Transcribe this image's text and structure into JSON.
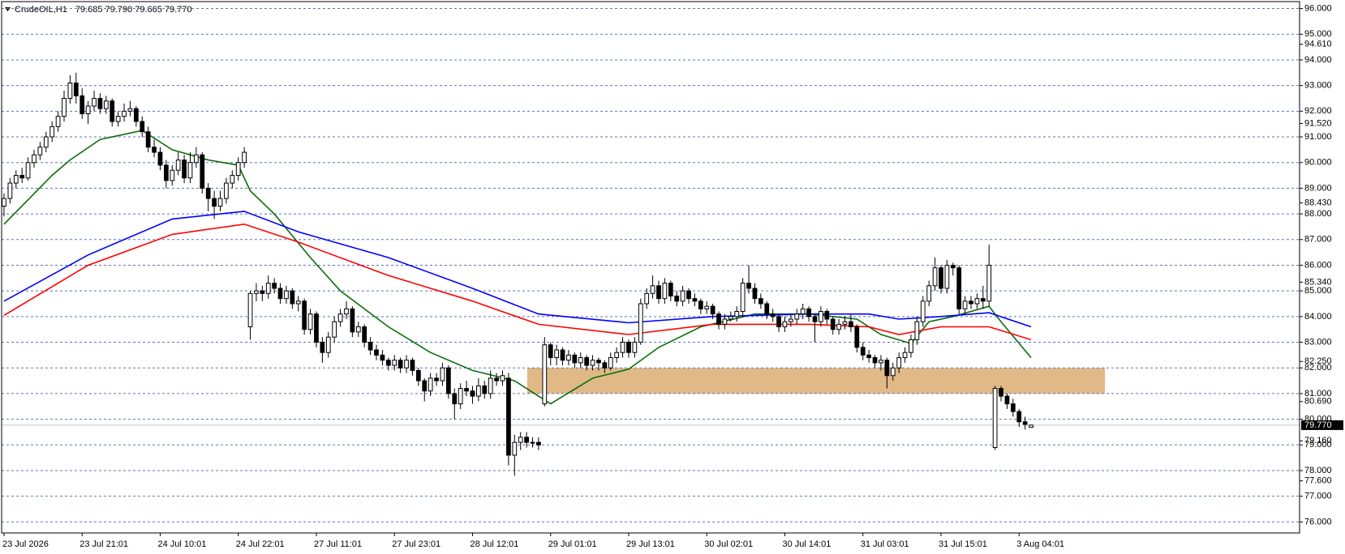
{
  "chart_data": {
    "type": "candlestick",
    "title": "CrudeOIL,H1",
    "subtitle": "79.685 79.790 79.665 79.770",
    "xlim": [
      -0.4,
      215.7
    ],
    "ylim": [
      75.57,
      96.27
    ],
    "xticks": [
      {
        "value": 0,
        "label": "23 Jul 2026"
      },
      {
        "value": 13,
        "label": "23 Jul 21:01"
      },
      {
        "value": 26,
        "label": "24 Jul 10:01"
      },
      {
        "value": 39,
        "label": "24 Jul 22:01"
      },
      {
        "value": 52,
        "label": "27 Jul 11:01"
      },
      {
        "value": 65,
        "label": "27 Jul 23:01"
      },
      {
        "value": 78,
        "label": "28 Jul 12:01"
      },
      {
        "value": 91,
        "label": "29 Jul 01:01"
      },
      {
        "value": 104,
        "label": "29 Jul 13:01"
      },
      {
        "value": 117,
        "label": "30 Jul 02:01"
      },
      {
        "value": 130,
        "label": "30 Jul 14:01"
      },
      {
        "value": 143,
        "label": "31 Jul 03:01"
      },
      {
        "value": 156,
        "label": "31 Jul 15:01"
      },
      {
        "value": 169,
        "label": "3 Aug 04:01"
      }
    ],
    "yticks": [
      {
        "value": 96,
        "label": "96.000"
      },
      {
        "value": 95,
        "label": "95.000"
      },
      {
        "value": 94,
        "label": "94.000"
      },
      {
        "value": 93,
        "label": "93.000"
      },
      {
        "value": 92,
        "label": "92.000"
      },
      {
        "value": 91,
        "label": "91.000"
      },
      {
        "value": 90,
        "label": "90.000"
      },
      {
        "value": 89,
        "label": "89.000"
      },
      {
        "value": 88,
        "label": "88.000"
      },
      {
        "value": 87,
        "label": "87.000"
      },
      {
        "value": 86,
        "label": "86.000"
      },
      {
        "value": 85,
        "label": "85.000"
      },
      {
        "value": 84,
        "label": "84.000"
      },
      {
        "value": 83,
        "label": "83.000"
      },
      {
        "value": 82,
        "label": "82.000"
      },
      {
        "value": 81,
        "label": "81.000"
      },
      {
        "value": 80,
        "label": "80.000"
      },
      {
        "value": 79,
        "label": "79.000"
      },
      {
        "value": 78,
        "label": "78.000"
      },
      {
        "value": 77,
        "label": "77.000"
      },
      {
        "value": 76,
        "label": "76.000"
      }
    ],
    "yticks_minor": [
      {
        "value": 94.61,
        "label": "94.610"
      },
      {
        "value": 91.52,
        "label": "91.520"
      },
      {
        "value": 88.43,
        "label": "88.430"
      },
      {
        "value": 85.34,
        "label": "85.340"
      },
      {
        "value": 82.25,
        "label": "82.250"
      },
      {
        "value": 80.69,
        "label": "80.690"
      },
      {
        "value": 79.16,
        "label": "79.160"
      },
      {
        "value": 77.6,
        "label": "77.600"
      }
    ],
    "grid": true,
    "grid_color": "#5b73c4",
    "up_color": "#ffffff",
    "down_color": "#000000",
    "last_price": {
      "value": 79.77,
      "label": "79.770"
    },
    "zone": {
      "x": [
        87.1,
        183.3
      ],
      "y": [
        81,
        82
      ],
      "color": "#e1b987"
    },
    "ohlc": [
      [
        88.3,
        88.8,
        87.9,
        88.6
      ],
      [
        88.6,
        89.4,
        88.4,
        89.2
      ],
      [
        89.2,
        89.7,
        89.0,
        89.5
      ],
      [
        89.5,
        89.8,
        89.2,
        89.4
      ],
      [
        89.4,
        90.2,
        89.3,
        90.0
      ],
      [
        90.0,
        90.5,
        89.8,
        90.3
      ],
      [
        90.3,
        90.8,
        90.1,
        90.6
      ],
      [
        90.6,
        91.2,
        90.4,
        91.0
      ],
      [
        91.0,
        91.6,
        90.8,
        91.4
      ],
      [
        91.4,
        92.0,
        91.2,
        91.8
      ],
      [
        91.8,
        92.8,
        91.6,
        92.5
      ],
      [
        92.5,
        93.4,
        92.3,
        93.1
      ],
      [
        93.1,
        93.5,
        92.3,
        92.6
      ],
      [
        92.6,
        92.9,
        91.7,
        91.9
      ],
      [
        91.9,
        92.4,
        91.5,
        92.2
      ],
      [
        92.2,
        92.8,
        92.0,
        92.5
      ],
      [
        92.5,
        92.7,
        91.9,
        92.1
      ],
      [
        92.1,
        92.6,
        91.9,
        92.4
      ],
      [
        92.4,
        92.5,
        91.4,
        91.6
      ],
      [
        91.6,
        92.0,
        91.4,
        91.8
      ],
      [
        91.8,
        92.3,
        91.6,
        92.0
      ],
      [
        92.0,
        92.4,
        91.8,
        92.1
      ],
      [
        92.1,
        92.2,
        91.4,
        91.6
      ],
      [
        91.6,
        91.8,
        91.0,
        91.2
      ],
      [
        91.2,
        91.4,
        90.4,
        90.6
      ],
      [
        90.6,
        90.9,
        90.2,
        90.4
      ],
      [
        90.4,
        90.6,
        89.7,
        89.9
      ],
      [
        89.9,
        90.1,
        89.0,
        89.3
      ],
      [
        89.3,
        89.9,
        89.1,
        89.7
      ],
      [
        89.7,
        90.4,
        89.5,
        90.1
      ],
      [
        90.1,
        90.3,
        89.2,
        89.4
      ],
      [
        89.4,
        90.4,
        89.2,
        90.0
      ],
      [
        90.0,
        90.6,
        89.8,
        90.3
      ],
      [
        90.3,
        90.4,
        88.8,
        89.0
      ],
      [
        89.0,
        89.2,
        88.1,
        88.6
      ],
      [
        88.6,
        88.9,
        87.8,
        88.3
      ],
      [
        88.3,
        88.9,
        88.1,
        88.6
      ],
      [
        88.6,
        89.4,
        88.4,
        89.2
      ],
      [
        89.2,
        89.7,
        89.0,
        89.5
      ],
      [
        89.5,
        90.2,
        89.3,
        90.0
      ],
      [
        90.0,
        90.6,
        89.8,
        90.4
      ],
      [
        83.6,
        85.0,
        83.1,
        84.9
      ],
      [
        84.9,
        85.3,
        84.6,
        85.0
      ],
      [
        85.0,
        85.2,
        84.6,
        84.9
      ],
      [
        84.9,
        85.6,
        84.7,
        85.3
      ],
      [
        85.3,
        85.5,
        84.9,
        85.1
      ],
      [
        85.1,
        85.3,
        84.5,
        84.7
      ],
      [
        84.7,
        85.2,
        84.5,
        85.0
      ],
      [
        85.0,
        85.1,
        84.3,
        84.5
      ],
      [
        84.5,
        84.8,
        84.2,
        84.6
      ],
      [
        84.6,
        84.7,
        83.3,
        83.5
      ],
      [
        83.5,
        84.3,
        83.3,
        84.1
      ],
      [
        84.1,
        84.2,
        82.8,
        83.0
      ],
      [
        83.0,
        83.2,
        82.2,
        82.6
      ],
      [
        82.6,
        83.4,
        82.4,
        83.2
      ],
      [
        83.2,
        84.0,
        83.0,
        83.8
      ],
      [
        83.8,
        84.3,
        83.6,
        84.1
      ],
      [
        84.1,
        84.6,
        83.9,
        84.3
      ],
      [
        84.3,
        84.4,
        83.2,
        83.4
      ],
      [
        83.4,
        83.8,
        83.2,
        83.6
      ],
      [
        83.6,
        83.7,
        82.8,
        83.0
      ],
      [
        83.0,
        83.2,
        82.5,
        82.7
      ],
      [
        82.7,
        82.9,
        82.3,
        82.5
      ],
      [
        82.5,
        82.7,
        82.1,
        82.3
      ],
      [
        82.3,
        82.4,
        81.9,
        82.1
      ],
      [
        82.1,
        82.5,
        81.9,
        82.3
      ],
      [
        82.3,
        82.4,
        81.8,
        82.0
      ],
      [
        82.0,
        82.5,
        81.8,
        82.3
      ],
      [
        82.3,
        82.4,
        81.7,
        81.9
      ],
      [
        81.9,
        82.0,
        81.3,
        81.5
      ],
      [
        81.5,
        81.6,
        80.7,
        81.1
      ],
      [
        81.1,
        81.8,
        80.9,
        81.6
      ],
      [
        81.6,
        81.8,
        81.3,
        81.5
      ],
      [
        81.5,
        82.2,
        81.3,
        82.0
      ],
      [
        82.0,
        82.1,
        80.8,
        81.0
      ],
      [
        81.0,
        81.2,
        80.0,
        80.6
      ],
      [
        80.6,
        81.4,
        80.4,
        81.2
      ],
      [
        81.2,
        81.5,
        80.9,
        81.1
      ],
      [
        81.1,
        81.3,
        80.6,
        80.9
      ],
      [
        80.9,
        81.6,
        80.7,
        81.3
      ],
      [
        81.3,
        81.5,
        80.8,
        81.0
      ],
      [
        81.0,
        81.9,
        80.8,
        81.6
      ],
      [
        81.6,
        81.8,
        81.3,
        81.5
      ],
      [
        81.5,
        81.9,
        81.3,
        81.7
      ],
      [
        81.6,
        81.8,
        78.2,
        78.6
      ],
      [
        78.6,
        79.4,
        77.8,
        79.1
      ],
      [
        79.1,
        79.5,
        78.8,
        79.3
      ],
      [
        79.3,
        79.5,
        78.9,
        79.1
      ],
      [
        79.1,
        79.3,
        78.9,
        79.1
      ],
      [
        79.1,
        79.3,
        78.8,
        79.0
      ],
      [
        80.6,
        83.2,
        80.5,
        82.9
      ],
      [
        82.9,
        83.0,
        82.1,
        82.4
      ],
      [
        82.4,
        82.9,
        82.1,
        82.7
      ],
      [
        82.7,
        82.8,
        82.1,
        82.3
      ],
      [
        82.3,
        82.7,
        82.1,
        82.5
      ],
      [
        82.5,
        82.6,
        82.0,
        82.2
      ],
      [
        82.2,
        82.6,
        82.0,
        82.4
      ],
      [
        82.4,
        82.5,
        81.9,
        82.1
      ],
      [
        82.1,
        82.5,
        81.9,
        82.3
      ],
      [
        82.3,
        82.4,
        81.9,
        82.2
      ],
      [
        82.2,
        82.3,
        81.8,
        82.0
      ],
      [
        82.0,
        82.6,
        81.9,
        82.4
      ],
      [
        82.4,
        82.8,
        82.2,
        82.6
      ],
      [
        82.6,
        83.2,
        82.4,
        83.0
      ],
      [
        83.0,
        83.1,
        82.4,
        82.6
      ],
      [
        82.6,
        83.2,
        82.4,
        83.0
      ],
      [
        83.0,
        84.7,
        82.9,
        84.5
      ],
      [
        84.5,
        85.1,
        84.3,
        84.9
      ],
      [
        84.9,
        85.6,
        84.7,
        85.2
      ],
      [
        85.2,
        85.4,
        84.5,
        84.7
      ],
      [
        84.7,
        85.5,
        84.5,
        85.3
      ],
      [
        85.3,
        85.4,
        84.6,
        84.8
      ],
      [
        84.8,
        85.0,
        84.4,
        84.6
      ],
      [
        84.6,
        85.2,
        84.4,
        85.0
      ],
      [
        85.0,
        85.1,
        84.5,
        84.7
      ],
      [
        84.7,
        84.9,
        84.4,
        84.6
      ],
      [
        84.6,
        84.7,
        84.1,
        84.3
      ],
      [
        84.3,
        84.6,
        84.1,
        84.4
      ],
      [
        84.4,
        84.5,
        83.9,
        84.1
      ],
      [
        84.1,
        84.2,
        83.5,
        83.7
      ],
      [
        83.7,
        84.1,
        83.5,
        83.9
      ],
      [
        83.9,
        84.2,
        83.8,
        84.0
      ],
      [
        84.0,
        84.4,
        83.8,
        84.2
      ],
      [
        84.2,
        85.5,
        84.0,
        85.3
      ],
      [
        85.3,
        86.0,
        84.9,
        85.1
      ],
      [
        85.1,
        85.3,
        84.5,
        84.7
      ],
      [
        84.7,
        84.9,
        84.3,
        84.5
      ],
      [
        84.5,
        84.6,
        83.9,
        84.1
      ],
      [
        84.1,
        84.3,
        83.8,
        84.0
      ],
      [
        84.0,
        84.1,
        83.4,
        83.6
      ],
      [
        83.6,
        84.0,
        83.4,
        83.8
      ],
      [
        83.8,
        84.1,
        83.6,
        83.9
      ],
      [
        83.9,
        84.3,
        83.7,
        84.1
      ],
      [
        84.1,
        84.5,
        83.9,
        84.3
      ],
      [
        84.3,
        84.4,
        83.8,
        84.0
      ],
      [
        84.0,
        84.1,
        83.0,
        83.8
      ],
      [
        83.8,
        84.4,
        83.6,
        84.2
      ],
      [
        84.2,
        84.3,
        83.7,
        83.9
      ],
      [
        83.9,
        84.0,
        83.3,
        83.5
      ],
      [
        83.5,
        83.9,
        83.3,
        83.7
      ],
      [
        83.7,
        84.0,
        83.5,
        83.8
      ],
      [
        83.8,
        84.1,
        83.4,
        83.6
      ],
      [
        83.6,
        83.7,
        82.6,
        82.8
      ],
      [
        82.8,
        83.0,
        82.3,
        82.5
      ],
      [
        82.5,
        82.7,
        82.2,
        82.4
      ],
      [
        82.4,
        82.5,
        82.0,
        82.2
      ],
      [
        82.2,
        82.5,
        81.9,
        82.3
      ],
      [
        82.3,
        82.4,
        81.2,
        81.7
      ],
      [
        81.7,
        82.2,
        81.5,
        82.0
      ],
      [
        82.0,
        82.6,
        81.8,
        82.4
      ],
      [
        82.4,
        82.8,
        82.2,
        82.6
      ],
      [
        82.6,
        83.3,
        82.4,
        83.1
      ],
      [
        83.1,
        84.0,
        82.9,
        83.8
      ],
      [
        83.8,
        84.8,
        83.6,
        84.6
      ],
      [
        84.6,
        85.4,
        84.4,
        85.2
      ],
      [
        85.2,
        86.3,
        85.0,
        85.9
      ],
      [
        85.9,
        86.0,
        84.9,
        85.1
      ],
      [
        85.1,
        86.2,
        84.9,
        86.0
      ],
      [
        86.0,
        86.1,
        85.6,
        85.9
      ],
      [
        85.9,
        86.0,
        84.1,
        84.3
      ],
      [
        84.3,
        84.8,
        84.1,
        84.6
      ],
      [
        84.6,
        84.8,
        84.3,
        84.5
      ],
      [
        84.5,
        84.9,
        84.3,
        84.7
      ],
      [
        84.7,
        85.2,
        84.3,
        84.6
      ],
      [
        84.6,
        86.8,
        84.4,
        86.0
      ],
      [
        78.9,
        81.3,
        78.8,
        81.2
      ],
      [
        81.2,
        81.3,
        80.7,
        80.9
      ],
      [
        80.9,
        81.0,
        80.4,
        80.6
      ],
      [
        80.6,
        80.8,
        80.1,
        80.3
      ],
      [
        80.3,
        80.4,
        79.7,
        79.9
      ],
      [
        79.9,
        80.1,
        79.6,
        79.8
      ],
      [
        79.685,
        79.79,
        79.665,
        79.77
      ]
    ],
    "series": [
      {
        "color": "#0a6e0a",
        "x": [
          0,
          8,
          11,
          16,
          23,
          28,
          34,
          39,
          41,
          45,
          51,
          56,
          64,
          71,
          78,
          85,
          91,
          98,
          104,
          109,
          116,
          125,
          134,
          142,
          146,
          151,
          154,
          158,
          164,
          166,
          171
        ],
        "values": [
          87.6,
          89.5,
          90.1,
          90.9,
          91.25,
          90.5,
          90.1,
          89.9,
          88.9,
          88.0,
          86.3,
          85.0,
          83.6,
          82.6,
          81.9,
          81.5,
          80.6,
          81.6,
          81.95,
          82.8,
          83.6,
          84.1,
          84.1,
          83.9,
          83.3,
          82.95,
          83.8,
          84.0,
          84.4,
          83.8,
          82.4
        ]
      },
      {
        "color": "#0000ff",
        "x": [
          0,
          14,
          28,
          40,
          49,
          64,
          78,
          89,
          104,
          118,
          134,
          144,
          149,
          156,
          164,
          171
        ],
        "values": [
          84.6,
          86.4,
          87.8,
          88.1,
          87.3,
          86.3,
          85.1,
          84.1,
          83.76,
          84.0,
          84.1,
          84.1,
          83.9,
          84.0,
          84.15,
          83.6
        ]
      },
      {
        "color": "#ff0000",
        "x": [
          0,
          14,
          28,
          40,
          49,
          64,
          78,
          89,
          104,
          118,
          134,
          144,
          149,
          156,
          164,
          171
        ],
        "values": [
          84.05,
          86.0,
          87.2,
          87.6,
          86.9,
          85.6,
          84.6,
          83.7,
          83.3,
          83.7,
          83.7,
          83.6,
          83.3,
          83.6,
          83.6,
          83.1
        ]
      }
    ]
  }
}
